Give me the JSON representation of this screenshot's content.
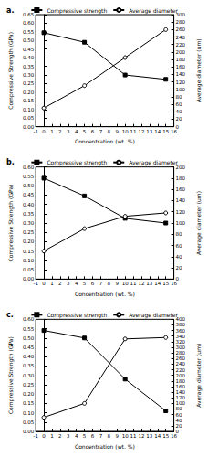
{
  "chart_data": [
    {
      "type": "line",
      "title": "a.",
      "xlabel": "Concentration (wt. %)",
      "ylabel": "Compressive Strength (GPa)",
      "y2label": "Average diameter (um)",
      "x": [
        0,
        5,
        10,
        15
      ],
      "series": [
        {
          "name": "Compressive strength",
          "color": "#000000",
          "marker": "square",
          "values": [
            0.545,
            0.49,
            0.3,
            0.275
          ]
        },
        {
          "name": "Average diameter",
          "color": "#000000",
          "marker": "circle_open",
          "axis": "y2",
          "values": [
            50,
            110,
            185,
            260
          ]
        }
      ],
      "xlim": [
        -1,
        16
      ],
      "xticks": [
        -1,
        0,
        1,
        2,
        3,
        4,
        5,
        6,
        7,
        8,
        9,
        10,
        11,
        12,
        13,
        14,
        15,
        16
      ],
      "ylim": [
        0,
        0.65
      ],
      "yticks": [
        {
          "value": 0,
          "label": "0.00"
        },
        {
          "value": 0.05,
          "label": "0.05"
        },
        {
          "value": 0.1,
          "label": "0.10"
        },
        {
          "value": 0.15,
          "label": "0.15"
        },
        {
          "value": 0.2,
          "label": "0.20"
        },
        {
          "value": 0.25,
          "label": "0.25"
        },
        {
          "value": 0.3,
          "label": "0.30"
        },
        {
          "value": 0.35,
          "label": "0.35"
        },
        {
          "value": 0.4,
          "label": "0.40"
        },
        {
          "value": 0.45,
          "label": "0.45"
        },
        {
          "value": 0.5,
          "label": "0.50"
        },
        {
          "value": 0.55,
          "label": "0.55"
        },
        {
          "value": 0.6,
          "label": "0.60"
        },
        {
          "value": 0.65,
          "label": "0.65"
        }
      ],
      "y2lim": [
        0,
        300
      ],
      "y2ticks": [
        0,
        20,
        40,
        60,
        80,
        100,
        120,
        140,
        160,
        180,
        200,
        220,
        240,
        260,
        280,
        300
      ],
      "grid": false,
      "legend": "upper right"
    },
    {
      "type": "line",
      "title": "b.",
      "xlabel": "Concentration (wt. %)",
      "ylabel": "Compressive Strength (GPa)",
      "y2label": "Average diameter (um)",
      "x": [
        0,
        5,
        10,
        15
      ],
      "series": [
        {
          "name": "Compressive strength",
          "color": "#000000",
          "marker": "square",
          "values": [
            0.54,
            0.445,
            0.325,
            0.3
          ]
        },
        {
          "name": "Average diameter",
          "color": "#000000",
          "marker": "circle_open",
          "axis": "y2",
          "values": [
            50,
            90,
            112,
            118
          ]
        }
      ],
      "xlim": [
        -1,
        16
      ],
      "xticks": [
        -1,
        0,
        1,
        2,
        3,
        4,
        5,
        6,
        7,
        8,
        9,
        10,
        11,
        12,
        13,
        14,
        15,
        16
      ],
      "ylim": [
        0,
        0.6
      ],
      "yticks": [
        {
          "value": 0,
          "label": "0.00"
        },
        {
          "value": 0.05,
          "label": "0.05"
        },
        {
          "value": 0.1,
          "label": "0.10"
        },
        {
          "value": 0.15,
          "label": "0.15"
        },
        {
          "value": 0.2,
          "label": "0.20"
        },
        {
          "value": 0.25,
          "label": "0.25"
        },
        {
          "value": 0.3,
          "label": "0.30"
        },
        {
          "value": 0.35,
          "label": "0.35"
        },
        {
          "value": 0.4,
          "label": "0.40"
        },
        {
          "value": 0.45,
          "label": "0.45"
        },
        {
          "value": 0.5,
          "label": "0.50"
        },
        {
          "value": 0.55,
          "label": "0.55"
        },
        {
          "value": 0.6,
          "label": "0.60"
        }
      ],
      "y2lim": [
        0,
        200
      ],
      "y2ticks": [
        0,
        20,
        40,
        60,
        80,
        100,
        120,
        140,
        160,
        180,
        200
      ],
      "grid": false,
      "legend": "upper right"
    },
    {
      "type": "line",
      "title": "c.",
      "xlabel": "Concentration (wt. %)",
      "ylabel": "Compressive Strength (GPa)",
      "y2label": "Average diameter (um)",
      "x": [
        0,
        5,
        10,
        15
      ],
      "series": [
        {
          "name": "Compressive strength",
          "color": "#000000",
          "marker": "square",
          "values": [
            0.54,
            0.5,
            0.28,
            0.11
          ]
        },
        {
          "name": "Average diameter",
          "color": "#000000",
          "marker": "circle_open",
          "axis": "y2",
          "values": [
            50,
            100,
            330,
            335
          ]
        }
      ],
      "xlim": [
        -1,
        16
      ],
      "xticks": [
        -1,
        0,
        1,
        2,
        3,
        4,
        5,
        6,
        7,
        8,
        9,
        10,
        11,
        12,
        13,
        14,
        15,
        16
      ],
      "ylim": [
        0,
        0.6
      ],
      "yticks": [
        {
          "value": 0,
          "label": "0.00"
        },
        {
          "value": 0.05,
          "label": "0.05"
        },
        {
          "value": 0.1,
          "label": "0.10"
        },
        {
          "value": 0.15,
          "label": "0.15"
        },
        {
          "value": 0.2,
          "label": "0.20"
        },
        {
          "value": 0.25,
          "label": "0.25"
        },
        {
          "value": 0.3,
          "label": "0.30"
        },
        {
          "value": 0.35,
          "label": "0.35"
        },
        {
          "value": 0.4,
          "label": "0.40"
        },
        {
          "value": 0.45,
          "label": "0.45"
        },
        {
          "value": 0.5,
          "label": "0.50"
        },
        {
          "value": 0.55,
          "label": "0.55"
        },
        {
          "value": 0.6,
          "label": "0.60"
        }
      ],
      "y2lim": [
        0,
        400
      ],
      "y2ticks": [
        0,
        20,
        40,
        60,
        80,
        100,
        120,
        140,
        160,
        180,
        200,
        220,
        240,
        260,
        280,
        300,
        320,
        340,
        360,
        380,
        400
      ],
      "grid": false,
      "legend": "upper right"
    }
  ]
}
